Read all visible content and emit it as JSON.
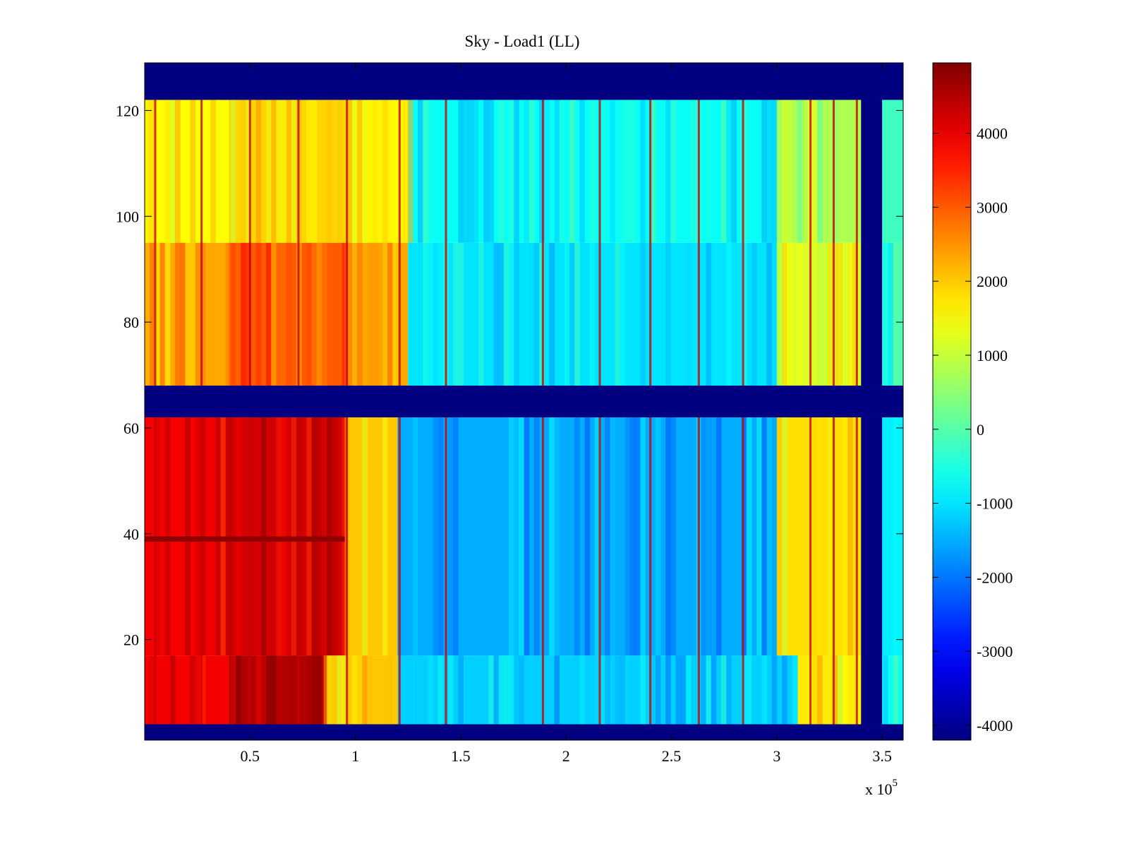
{
  "chart_data": {
    "type": "heatmap",
    "title": "Sky - Load1 (LL)",
    "xlabel": "",
    "ylabel": "",
    "x_multiplier_label": "x 10",
    "x_multiplier_exponent": "5",
    "xlim": [
      0,
      360000
    ],
    "ylim": [
      1,
      129
    ],
    "x_ticks": [
      {
        "value": 50000,
        "label": "0.5"
      },
      {
        "value": 100000,
        "label": "1"
      },
      {
        "value": 150000,
        "label": "1.5"
      },
      {
        "value": 200000,
        "label": "2"
      },
      {
        "value": 250000,
        "label": "2.5"
      },
      {
        "value": 300000,
        "label": "3"
      },
      {
        "value": 350000,
        "label": "3.5"
      }
    ],
    "y_ticks": [
      {
        "value": 20,
        "label": "20"
      },
      {
        "value": 40,
        "label": "40"
      },
      {
        "value": 60,
        "label": "60"
      },
      {
        "value": 80,
        "label": "80"
      },
      {
        "value": 100,
        "label": "100"
      },
      {
        "value": 120,
        "label": "120"
      }
    ],
    "colorbar": {
      "colormap": "jet",
      "clim": [
        -4200,
        4950
      ],
      "ticks": [
        {
          "value": 4000,
          "label": "4000"
        },
        {
          "value": 3000,
          "label": "3000"
        },
        {
          "value": 2000,
          "label": "2000"
        },
        {
          "value": 1000,
          "label": "1000"
        },
        {
          "value": 0,
          "label": "0"
        },
        {
          "value": -1000,
          "label": "-1000"
        },
        {
          "value": -2000,
          "label": "-2000"
        },
        {
          "value": -3000,
          "label": "-3000"
        },
        {
          "value": -4000,
          "label": "-4000"
        }
      ]
    },
    "masked_value": -4200,
    "masked_y_bands": [
      [
        1,
        4
      ],
      [
        62,
        68
      ],
      [
        122,
        129
      ]
    ],
    "masked_x_bands": [
      [
        340000,
        350000
      ]
    ],
    "y_ranges": [
      {
        "range": [
          4,
          17
        ],
        "approx_value_by_x": [
          {
            "x": [
              0,
              40000
            ],
            "value": 3900
          },
          {
            "x": [
              40000,
              85000
            ],
            "value": 4500
          },
          {
            "x": [
              85000,
              120000
            ],
            "value": 2000
          },
          {
            "x": [
              120000,
              310000
            ],
            "value": -1200
          },
          {
            "x": [
              310000,
              340000
            ],
            "value": 1700
          },
          {
            "x": [
              350000,
              360000
            ],
            "value": -700
          }
        ]
      },
      {
        "range": [
          17,
          62
        ],
        "approx_value_by_x": [
          {
            "x": [
              0,
              40000
            ],
            "value": 3900
          },
          {
            "x": [
              40000,
              95000
            ],
            "value": 4200
          },
          {
            "x": [
              95000,
              120000
            ],
            "value": 2000
          },
          {
            "x": [
              120000,
              300000
            ],
            "value": -1500
          },
          {
            "x": [
              300000,
              340000
            ],
            "value": 1800
          },
          {
            "x": [
              350000,
              360000
            ],
            "value": -900
          }
        ]
      },
      {
        "range": [
          68,
          95
        ],
        "approx_value_by_x": [
          {
            "x": [
              0,
              40000
            ],
            "value": 2300
          },
          {
            "x": [
              40000,
              95000
            ],
            "value": 3000
          },
          {
            "x": [
              95000,
              125000
            ],
            "value": 2300
          },
          {
            "x": [
              125000,
              300000
            ],
            "value": -1000
          },
          {
            "x": [
              300000,
              340000
            ],
            "value": 1200
          },
          {
            "x": [
              350000,
              360000
            ],
            "value": -300
          }
        ]
      },
      {
        "range": [
          95,
          122
        ],
        "approx_value_by_x": [
          {
            "x": [
              0,
              40000
            ],
            "value": 1500
          },
          {
            "x": [
              40000,
              95000
            ],
            "value": 1900
          },
          {
            "x": [
              95000,
              125000
            ],
            "value": 1600
          },
          {
            "x": [
              125000,
              300000
            ],
            "value": -700
          },
          {
            "x": [
              300000,
              340000
            ],
            "value": 800
          },
          {
            "x": [
              350000,
              360000
            ],
            "value": -200
          }
        ]
      }
    ],
    "hot_columns_x": [
      5000,
      27000,
      50000,
      73000,
      96000,
      121000,
      143000,
      189000,
      216000,
      240000,
      263000,
      284000,
      316000,
      327000,
      338000
    ],
    "hot_row_y": 39
  }
}
